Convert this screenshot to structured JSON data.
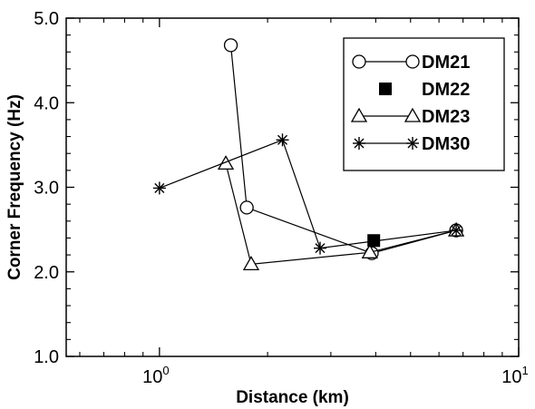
{
  "chart_data": {
    "type": "line",
    "title": "",
    "xlabel": "Distance (km)",
    "ylabel": "Corner Frequency (Hz)",
    "xscale": "log",
    "xlim": [
      0.55,
      10
    ],
    "ylim": [
      1.0,
      5.0
    ],
    "x_ticks": [
      {
        "value": 1,
        "base": "10",
        "exp": "0"
      },
      {
        "value": 10,
        "base": "10",
        "exp": "1"
      }
    ],
    "y_ticks": [
      "1.0",
      "2.0",
      "3.0",
      "4.0",
      "5.0"
    ],
    "legend_position": "top-right",
    "grid": false,
    "series": [
      {
        "name": "DM21",
        "marker": "open-circle",
        "line": true,
        "x": [
          1.58,
          1.75,
          3.9,
          6.7
        ],
        "y": [
          4.68,
          2.76,
          2.22,
          2.49
        ]
      },
      {
        "name": "DM22",
        "marker": "filled-square",
        "line": false,
        "x": [
          3.95
        ],
        "y": [
          2.37
        ]
      },
      {
        "name": "DM23",
        "marker": "open-triangle",
        "line": true,
        "x": [
          1.53,
          1.8,
          3.85,
          6.7
        ],
        "y": [
          3.28,
          2.09,
          2.23,
          2.49
        ]
      },
      {
        "name": "DM30",
        "marker": "asterisk",
        "line": true,
        "x": [
          1.0,
          2.2,
          2.8,
          6.7
        ],
        "y": [
          2.99,
          3.56,
          2.28,
          2.49
        ]
      }
    ]
  }
}
